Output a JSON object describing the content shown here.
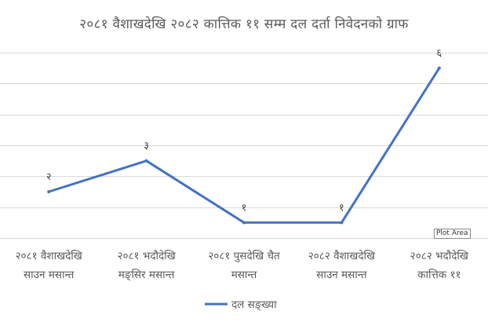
{
  "chart_data": {
    "type": "line",
    "title": "२०८१ वैशाखदेखि २०८२ कात्तिक ११ सम्म दल दर्ता निवेदनको ग्राफ",
    "categories": [
      [
        "२०८१ वैशाखदेखि",
        "साउन मसान्त"
      ],
      [
        "२०८१ भदौदेखि",
        "मङ्सिर मसान्त"
      ],
      [
        "२०८१ पुसदेखि चैत",
        "मसान्त"
      ],
      [
        "२०८२ वैशाखदेखि",
        "साउन मसान्त"
      ],
      [
        "२०८२ भदौदेखि",
        "कात्तिक ११"
      ]
    ],
    "series": [
      {
        "name": "दल सङ्ख्या",
        "values": [
          2,
          3,
          1,
          1,
          6
        ],
        "data_labels": [
          "२",
          "३",
          "१",
          "१",
          "६"
        ],
        "color": "#4472C4"
      }
    ],
    "ylim": [
      0.5,
      6.5
    ],
    "grid": true,
    "y_axis_labels": false,
    "legend": "bottom"
  },
  "tooltip": {
    "text": "Plot Area"
  }
}
